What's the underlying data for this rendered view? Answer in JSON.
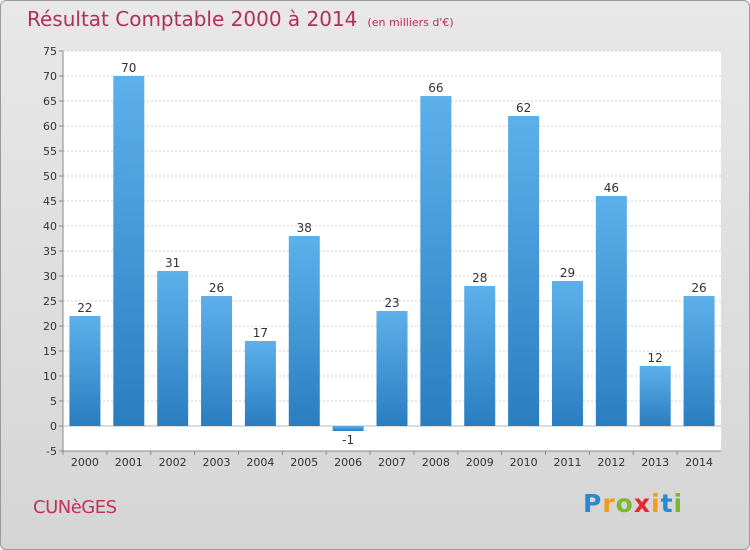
{
  "title": "Résultat Comptable 2000 à 2014",
  "unit": "(en milliers d'€)",
  "commune": "CUNèGES",
  "logo": {
    "letters": [
      {
        "ch": "P",
        "color": "#2a88cc"
      },
      {
        "ch": "r",
        "color": "#f29a1a"
      },
      {
        "ch": "o",
        "color": "#7ab82e"
      },
      {
        "ch": "x",
        "color": "#e8262c"
      },
      {
        "ch": "i",
        "color": "#f29a1a"
      },
      {
        "ch": "t",
        "color": "#2a88cc"
      },
      {
        "ch": "i",
        "color": "#7ab82e"
      }
    ]
  },
  "chart_data": {
    "type": "bar",
    "categories": [
      "2000",
      "2001",
      "2002",
      "2003",
      "2004",
      "2005",
      "2006",
      "2007",
      "2008",
      "2009",
      "2010",
      "2011",
      "2012",
      "2013",
      "2014"
    ],
    "values": [
      22,
      70,
      31,
      26,
      17,
      38,
      -1,
      23,
      66,
      28,
      62,
      29,
      46,
      12,
      26
    ],
    "ylim": [
      -5,
      75
    ],
    "yticks": [
      -5,
      0,
      5,
      10,
      15,
      20,
      25,
      30,
      35,
      40,
      45,
      50,
      55,
      60,
      65,
      70,
      75
    ],
    "grid": true,
    "bar_color": "#4a9fdc"
  }
}
